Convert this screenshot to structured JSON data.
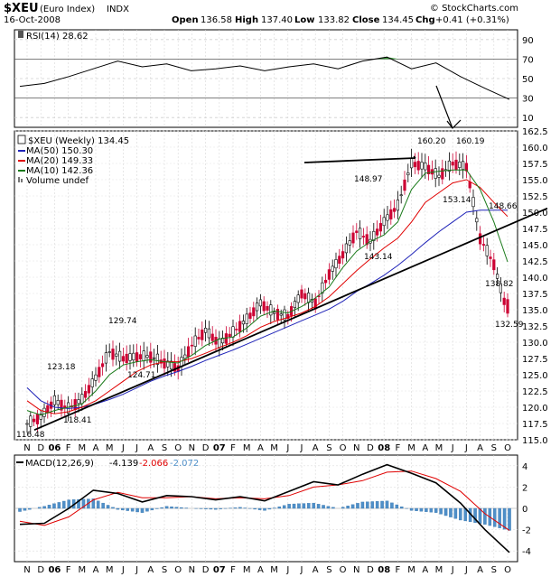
{
  "header": {
    "symbol": "$XEU",
    "name": "(Euro Index)",
    "exchange": "INDX",
    "date": "16-Oct-2008",
    "open_label": "Open",
    "open": "136.58",
    "high_label": "High",
    "high": "137.40",
    "low_label": "Low",
    "low": "133.82",
    "close_label": "Close",
    "close": "134.45",
    "chg_label": "Chg",
    "chg": "+0.41 (+0.31%)",
    "copyright": "© StockCharts.com"
  },
  "rsi_panel": {
    "label": "RSI(14) 28.62",
    "ticks": [
      "90",
      "70",
      "50",
      "30",
      "10"
    ]
  },
  "price_panel": {
    "title": "$XEU (Weekly) 134.45",
    "legend": [
      {
        "text": "MA(50) 150.30",
        "color": "#1f23b8"
      },
      {
        "text": "MA(20) 149.33",
        "color": "#e00000"
      },
      {
        "text": "MA(10) 142.36",
        "color": "#1a7a1a"
      },
      {
        "text": "Volume undef",
        "color": "#777777"
      }
    ],
    "ticks": [
      "162.5",
      "160.0",
      "157.5",
      "155.0",
      "152.5",
      "150.0",
      "147.5",
      "145.0",
      "142.5",
      "140.0",
      "137.5",
      "135.0",
      "132.5",
      "130.0",
      "127.5",
      "125.0",
      "122.5",
      "120.0",
      "117.5",
      "115.0"
    ],
    "annotations": [
      "116.48",
      "123.18",
      "118.41",
      "129.74",
      "124.71",
      "148.97",
      "143.14",
      "160.20",
      "160.19",
      "153.14",
      "148.66",
      "138.82",
      "132.59"
    ]
  },
  "macd_panel": {
    "label": "MACD(12,26,9)",
    "values": [
      "-4.139",
      "-2.066",
      "-2.072"
    ],
    "ticks": [
      "4",
      "2",
      "0",
      "-2",
      "-4"
    ]
  },
  "x_axis": {
    "labels": [
      "N",
      "D",
      "06",
      "F",
      "M",
      "A",
      "M",
      "J",
      "J",
      "A",
      "S",
      "O",
      "N",
      "D",
      "07",
      "F",
      "M",
      "A",
      "M",
      "J",
      "J",
      "A",
      "S",
      "O",
      "N",
      "D",
      "08",
      "F",
      "M",
      "A",
      "M",
      "J",
      "J",
      "A",
      "S",
      "O"
    ]
  },
  "colors": {
    "up_candle": "#ffffff",
    "down_candle": "#cc0033",
    "ma50": "#1f23b8",
    "ma20": "#e00000",
    "ma10": "#1a7a1a",
    "histogram": "#4f8fc8",
    "rsi_fill": "#3a9a3a"
  },
  "chart_data": [
    {
      "type": "line",
      "title": "RSI(14) 28.62",
      "x": [
        "Nov-05",
        "Jan-06",
        "Mar-06",
        "May-06",
        "Jul-06",
        "Sep-06",
        "Nov-06",
        "Jan-07",
        "Mar-07",
        "May-07",
        "Jul-07",
        "Sep-07",
        "Nov-07",
        "Jan-08",
        "Mar-08",
        "Apr-08",
        "May-08",
        "Jul-08",
        "Aug-08",
        "Sep-08",
        "Oct-08"
      ],
      "series": [
        {
          "values": [
            42,
            45,
            52,
            60,
            68,
            62,
            65,
            58,
            60,
            63,
            58,
            62,
            65,
            60,
            68,
            72,
            60,
            66,
            52,
            40,
            28.62
          ]
        }
      ],
      "ylim": [
        0,
        100
      ]
    },
    {
      "type": "candlestick",
      "title": "$XEU (Weekly) 134.45",
      "ylim": [
        115,
        162.5
      ],
      "x": [
        "Nov-05",
        "Dec-05",
        "Jan-06",
        "Feb-06",
        "Mar-06",
        "Apr-06",
        "May-06",
        "Jun-06",
        "Jul-06",
        "Aug-06",
        "Sep-06",
        "Oct-06",
        "Nov-06",
        "Dec-06",
        "Jan-07",
        "Feb-07",
        "Mar-07",
        "Apr-07",
        "May-07",
        "Jun-07",
        "Jul-07",
        "Aug-07",
        "Sep-07",
        "Oct-07",
        "Nov-07",
        "Dec-07",
        "Jan-08",
        "Feb-08",
        "Mar-08",
        "Apr-08",
        "May-08",
        "Jun-08",
        "Jul-08",
        "Aug-08",
        "Sep-08",
        "Oct-08"
      ],
      "close": [
        117.5,
        118.5,
        121.0,
        119.8,
        121.2,
        124.5,
        128.5,
        127.5,
        127.8,
        127.8,
        126.8,
        126.0,
        129.5,
        131.8,
        129.8,
        131.5,
        133.5,
        136.0,
        134.5,
        134.0,
        137.5,
        136.0,
        140.5,
        143.5,
        147.0,
        145.5,
        148.5,
        151.0,
        157.5,
        157.0,
        155.5,
        157.5,
        157.0,
        146.0,
        142.0,
        134.45
      ],
      "series": [
        {
          "name": "MA(50)",
          "values": [
            123.0,
            121.0,
            120.0,
            119.8,
            120.0,
            120.5,
            121.2,
            122.0,
            123.0,
            124.0,
            124.8,
            125.5,
            126.3,
            127.2,
            128.0,
            128.8,
            129.7,
            130.6,
            131.5,
            132.4,
            133.3,
            134.2,
            135.1,
            136.3,
            137.8,
            139.0,
            140.3,
            141.8,
            143.5,
            145.3,
            147.0,
            148.5,
            150.0,
            150.3,
            150.3,
            150.3
          ]
        },
        {
          "name": "MA(20)",
          "values": [
            121.0,
            119.5,
            119.0,
            119.3,
            120.0,
            121.0,
            122.5,
            124.0,
            125.5,
            126.5,
            127.0,
            127.0,
            127.5,
            128.3,
            129.2,
            130.0,
            131.0,
            132.3,
            133.2,
            133.8,
            134.5,
            135.5,
            137.0,
            139.0,
            141.0,
            142.8,
            144.5,
            146.0,
            148.5,
            151.5,
            153.0,
            154.5,
            155.0,
            153.8,
            151.5,
            149.33
          ]
        },
        {
          "name": "MA(10)",
          "values": [
            119.5,
            118.8,
            119.5,
            120.0,
            120.5,
            122.5,
            125.0,
            126.5,
            127.0,
            127.3,
            127.0,
            126.8,
            128.0,
            129.5,
            130.5,
            130.8,
            132.2,
            134.0,
            134.8,
            134.5,
            135.5,
            136.8,
            138.5,
            141.5,
            144.0,
            145.5,
            146.5,
            148.5,
            153.5,
            156.0,
            156.3,
            156.5,
            156.5,
            153.5,
            148.5,
            142.36
          ]
        }
      ],
      "trendline": {
        "from": [
          "Nov-05",
          116.5
        ],
        "to": [
          "Oct-08",
          148.0
        ]
      },
      "annotations": [
        {
          "text": "116.48"
        },
        {
          "text": "123.18"
        },
        {
          "text": "118.41"
        },
        {
          "text": "129.74"
        },
        {
          "text": "124.71"
        },
        {
          "text": "148.97"
        },
        {
          "text": "143.14"
        },
        {
          "text": "160.20"
        },
        {
          "text": "160.19"
        },
        {
          "text": "153.14"
        },
        {
          "text": "148.66"
        },
        {
          "text": "138.82"
        },
        {
          "text": "132.59"
        }
      ]
    },
    {
      "type": "line",
      "title": "MACD(12,26,9) -4.139, -2.066, -2.072",
      "ylim": [
        -5,
        5
      ],
      "x": [
        "Nov-05",
        "Jan-06",
        "Mar-06",
        "May-06",
        "Jul-06",
        "Sep-06",
        "Nov-06",
        "Jan-07",
        "Mar-07",
        "May-07",
        "Jul-07",
        "Sep-07",
        "Nov-07",
        "Jan-08",
        "Mar-08",
        "Apr-08",
        "May-08",
        "Jul-08",
        "Aug-08",
        "Sep-08",
        "Oct-08"
      ],
      "series": [
        {
          "name": "MACD",
          "values": [
            -1.5,
            -1.4,
            0.0,
            1.7,
            1.4,
            0.6,
            1.2,
            1.1,
            0.8,
            1.1,
            0.7,
            1.6,
            2.5,
            2.2,
            3.2,
            4.1,
            3.3,
            2.4,
            0.5,
            -2.0,
            -4.139
          ]
        },
        {
          "name": "Signal",
          "values": [
            -1.2,
            -1.6,
            -0.8,
            0.8,
            1.5,
            1.0,
            1.0,
            1.1,
            0.9,
            1.0,
            0.9,
            1.2,
            2.0,
            2.2,
            2.6,
            3.4,
            3.5,
            2.8,
            1.6,
            -0.5,
            -2.066
          ]
        },
        {
          "name": "Histogram",
          "values": [
            -0.3,
            0.2,
            0.8,
            0.9,
            -0.1,
            -0.4,
            0.2,
            0.0,
            -0.1,
            0.1,
            -0.2,
            0.4,
            0.5,
            0.0,
            0.6,
            0.7,
            -0.2,
            -0.4,
            -1.1,
            -1.5,
            -2.072
          ]
        }
      ]
    }
  ]
}
